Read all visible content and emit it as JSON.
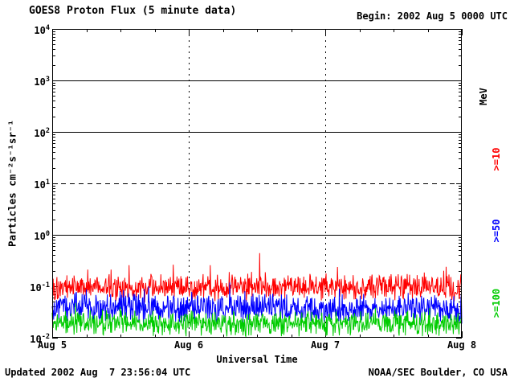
{
  "header": {
    "title": "GOES8 Proton Flux (5 minute data)",
    "begin_label": "Begin: 2002 Aug 5 0000 UTC"
  },
  "footer": {
    "updated": "Updated 2002 Aug  7 23:56:04 UTC",
    "credit": "NOAA/SEC Boulder, CO USA"
  },
  "chart_data": {
    "type": "line",
    "title": "GOES8 Proton Flux (5 minute data)",
    "xlabel": "Universal Time",
    "ylabel": "Particles cm⁻²s⁻¹sr⁻¹",
    "begin": "2002 Aug 5 0000 UTC",
    "updated": "2002 Aug 7 23:56:04 UTC",
    "x_ticks": [
      "Aug 5",
      "Aug 6",
      "Aug 7",
      "Aug 8"
    ],
    "x_days": 3,
    "points_per_day": 288,
    "y_scale": "log",
    "ylim_log": [
      -2,
      4
    ],
    "y_tick_exponents": [
      4,
      3,
      2,
      1,
      0,
      -1,
      -2
    ],
    "gridlines": {
      "solid_y_exponents": [
        3,
        2,
        0
      ],
      "dashed_y_exponents": [
        1
      ],
      "dashed_x_days": [
        1,
        2
      ]
    },
    "right_axis_labels": [
      {
        "text": "MeV",
        "color": "#000000"
      },
      {
        "text": ">=10",
        "color": "#ff0000"
      },
      {
        "text": ">=50",
        "color": "#0000ff"
      },
      {
        "text": ">=100",
        "color": "#00cc00"
      }
    ],
    "series": [
      {
        "name": ">=10 MeV",
        "color": "#ff0000",
        "log_base": -1.02,
        "log_amp": 0.3,
        "spike_prob": 0.04,
        "spike_amp": 0.45,
        "seed": 101,
        "approx_range": [
          0.05,
          0.55
        ]
      },
      {
        "name": ">=50 MeV",
        "color": "#0000ff",
        "log_base": -1.42,
        "log_amp": 0.33,
        "spike_prob": 0.03,
        "spike_amp": 0.35,
        "seed": 202,
        "approx_range": [
          0.015,
          0.2
        ]
      },
      {
        "name": ">=100 MeV",
        "color": "#00cc00",
        "log_base": -1.72,
        "log_amp": 0.28,
        "spike_prob": 0.02,
        "spike_amp": 0.25,
        "seed": 303,
        "approx_range": [
          0.01,
          0.05
        ]
      }
    ]
  }
}
